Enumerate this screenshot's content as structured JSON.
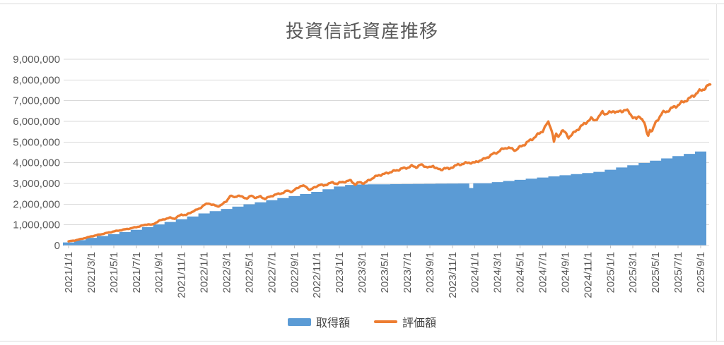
{
  "page": {
    "title": "投資信託資産推移"
  },
  "colors": {
    "acquisition_blue": "#5b9bd5",
    "valuation_orange": "#ed7d31",
    "gridline": "#d9d9d9",
    "axis_line": "#bfbfbf",
    "axis_text": "#595959",
    "title_text": "#595959",
    "legend_text": "#404040",
    "background": "#ffffff"
  },
  "chart_data": {
    "type": "combo-area-line",
    "title": "投資信託資産推移",
    "xlabel": "",
    "ylabel": "",
    "grid": true,
    "legend_position": "bottom",
    "y_axis": {
      "min": 0,
      "max": 9000000,
      "tick_interval": 1000000,
      "ticks": [
        {
          "value": 0,
          "label": "0"
        },
        {
          "value": 1000000,
          "label": "1,000,000"
        },
        {
          "value": 2000000,
          "label": "2,000,000"
        },
        {
          "value": 3000000,
          "label": "3,000,000"
        },
        {
          "value": 4000000,
          "label": "4,000,000"
        },
        {
          "value": 5000000,
          "label": "5,000,000"
        },
        {
          "value": 6000000,
          "label": "6,000,000"
        },
        {
          "value": 7000000,
          "label": "7,000,000"
        },
        {
          "value": 8000000,
          "label": "8,000,000"
        },
        {
          "value": 9000000,
          "label": "9,000,000"
        }
      ]
    },
    "x_axis": {
      "unit": "months_since_2021_01",
      "months_per_tick": 2,
      "tick_labels": [
        "2021/1/1",
        "2021/3/1",
        "2021/5/1",
        "2021/7/1",
        "2021/9/1",
        "2021/11/1",
        "2022/1/1",
        "2022/3/1",
        "2022/5/1",
        "2022/7/1",
        "2022/9/1",
        "2022/11/1",
        "2023/1/1",
        "2023/3/1",
        "2023/5/1",
        "2023/7/1",
        "2023/9/1",
        "2023/11/1",
        "2024/1/1",
        "2024/3/1",
        "2024/5/1",
        "2024/7/1",
        "2024/9/1",
        "2024/11/1",
        "2025/1/1",
        "2025/3/1",
        "2025/5/1",
        "2025/7/1",
        "2025/9/1"
      ]
    },
    "series": [
      {
        "name": "取得額",
        "type": "step-area",
        "color": "#5b9bd5",
        "step_points": [
          [
            0,
            150000
          ],
          [
            1,
            260000
          ],
          [
            2,
            370000
          ],
          [
            3,
            460000
          ],
          [
            4,
            550000
          ],
          [
            5,
            650000
          ],
          [
            6,
            760000
          ],
          [
            7,
            890000
          ],
          [
            8,
            1020000
          ],
          [
            9,
            1140000
          ],
          [
            10,
            1270000
          ],
          [
            11,
            1400000
          ],
          [
            12,
            1550000
          ],
          [
            13,
            1660000
          ],
          [
            14,
            1770000
          ],
          [
            15,
            1880000
          ],
          [
            16,
            1990000
          ],
          [
            17,
            2090000
          ],
          [
            18,
            2190000
          ],
          [
            19,
            2290000
          ],
          [
            20,
            2390000
          ],
          [
            21,
            2490000
          ],
          [
            22,
            2590000
          ],
          [
            23,
            2720000
          ],
          [
            24,
            2850000
          ],
          [
            25,
            2930000
          ],
          [
            26,
            2950000
          ],
          [
            27,
            2955000
          ],
          [
            28,
            2960000
          ],
          [
            29,
            2965000
          ],
          [
            30,
            2970000
          ],
          [
            31,
            2975000
          ],
          [
            32,
            2980000
          ],
          [
            33,
            2985000
          ],
          [
            34,
            2990000
          ],
          [
            35,
            2995000
          ],
          [
            36,
            2780000
          ],
          [
            36.35,
            3010000
          ],
          [
            37,
            3010000
          ],
          [
            38,
            3065000
          ],
          [
            39,
            3120000
          ],
          [
            40,
            3175000
          ],
          [
            41,
            3230000
          ],
          [
            42,
            3285000
          ],
          [
            43,
            3340000
          ],
          [
            44,
            3395000
          ],
          [
            45,
            3450000
          ],
          [
            46,
            3505000
          ],
          [
            47,
            3560000
          ],
          [
            48,
            3660000
          ],
          [
            49,
            3770000
          ],
          [
            50,
            3880000
          ],
          [
            51,
            3990000
          ],
          [
            52,
            4100000
          ],
          [
            53,
            4210000
          ],
          [
            54,
            4320000
          ],
          [
            55,
            4430000
          ],
          [
            56,
            4540000
          ]
        ]
      },
      {
        "name": "評価額",
        "type": "line",
        "color": "#ed7d31",
        "points": [
          [
            0,
            200000
          ],
          [
            0.5,
            240000
          ],
          [
            1,
            300000
          ],
          [
            1.5,
            370000
          ],
          [
            2,
            440000
          ],
          [
            2.5,
            500000
          ],
          [
            3,
            560000
          ],
          [
            3.5,
            620000
          ],
          [
            4,
            680000
          ],
          [
            4.5,
            730000
          ],
          [
            5,
            780000
          ],
          [
            5.5,
            830000
          ],
          [
            6,
            890000
          ],
          [
            6.5,
            960000
          ],
          [
            7,
            1030000
          ],
          [
            7.4,
            1000000
          ],
          [
            8,
            1190000
          ],
          [
            8.5,
            1280000
          ],
          [
            9,
            1340000
          ],
          [
            9.4,
            1300000
          ],
          [
            10,
            1500000
          ],
          [
            10.4,
            1470000
          ],
          [
            11,
            1650000
          ],
          [
            11.5,
            1760000
          ],
          [
            12,
            1950000
          ],
          [
            12.4,
            2040000
          ],
          [
            12.8,
            1960000
          ],
          [
            13.2,
            1890000
          ],
          [
            13.6,
            1980000
          ],
          [
            14,
            2150000
          ],
          [
            14.3,
            2400000
          ],
          [
            14.7,
            2330000
          ],
          [
            15,
            2420000
          ],
          [
            15.4,
            2340000
          ],
          [
            15.8,
            2280000
          ],
          [
            16.2,
            2400000
          ],
          [
            16.6,
            2310000
          ],
          [
            17,
            2360000
          ],
          [
            17.4,
            2260000
          ],
          [
            17.8,
            2350000
          ],
          [
            18.2,
            2440000
          ],
          [
            18.6,
            2490000
          ],
          [
            19,
            2550000
          ],
          [
            19.4,
            2650000
          ],
          [
            19.8,
            2600000
          ],
          [
            20.2,
            2750000
          ],
          [
            20.6,
            2900000
          ],
          [
            21,
            2840000
          ],
          [
            21.4,
            2690000
          ],
          [
            21.8,
            2800000
          ],
          [
            22.2,
            2940000
          ],
          [
            22.6,
            2890000
          ],
          [
            23,
            2990000
          ],
          [
            23.4,
            3040000
          ],
          [
            23.8,
            2990000
          ],
          [
            24.2,
            3060000
          ],
          [
            24.6,
            3100000
          ],
          [
            25,
            3140000
          ],
          [
            25.4,
            2950000
          ],
          [
            25.8,
            3060000
          ],
          [
            26.2,
            3010000
          ],
          [
            26.6,
            3150000
          ],
          [
            27,
            3280000
          ],
          [
            27.5,
            3400000
          ],
          [
            28,
            3460000
          ],
          [
            28.5,
            3550000
          ],
          [
            29,
            3620000
          ],
          [
            29.5,
            3710000
          ],
          [
            30,
            3760000
          ],
          [
            30.4,
            3840000
          ],
          [
            30.8,
            3790000
          ],
          [
            31.2,
            3900000
          ],
          [
            31.6,
            3830000
          ],
          [
            32,
            3760000
          ],
          [
            32.3,
            3850000
          ],
          [
            32.7,
            3700000
          ],
          [
            33,
            3640000
          ],
          [
            33.3,
            3760000
          ],
          [
            33.7,
            3690000
          ],
          [
            34,
            3800000
          ],
          [
            34.5,
            3900000
          ],
          [
            35,
            3960000
          ],
          [
            35.5,
            4010000
          ],
          [
            36,
            4000000
          ],
          [
            36.4,
            4110000
          ],
          [
            36.8,
            4170000
          ],
          [
            37.2,
            4300000
          ],
          [
            37.6,
            4420000
          ],
          [
            38,
            4510000
          ],
          [
            38.4,
            4640000
          ],
          [
            38.8,
            4740000
          ],
          [
            39.2,
            4680000
          ],
          [
            39.6,
            4610000
          ],
          [
            40,
            4760000
          ],
          [
            40.5,
            4930000
          ],
          [
            41,
            5120000
          ],
          [
            41.5,
            5320000
          ],
          [
            42,
            5550000
          ],
          [
            42.3,
            5800000
          ],
          [
            42.5,
            5950000
          ],
          [
            42.7,
            5750000
          ],
          [
            42.9,
            5350000
          ],
          [
            43,
            5020000
          ],
          [
            43.2,
            5360000
          ],
          [
            43.4,
            5260000
          ],
          [
            43.7,
            5560000
          ],
          [
            44,
            5450000
          ],
          [
            44.3,
            5230000
          ],
          [
            44.7,
            5400000
          ],
          [
            45,
            5570000
          ],
          [
            45.5,
            5790000
          ],
          [
            46,
            6020000
          ],
          [
            46.3,
            6120000
          ],
          [
            46.6,
            6060000
          ],
          [
            47,
            6210000
          ],
          [
            47.3,
            6460000
          ],
          [
            47.6,
            6360000
          ],
          [
            48,
            6420000
          ],
          [
            48.3,
            6520000
          ],
          [
            48.6,
            6420000
          ],
          [
            49,
            6500000
          ],
          [
            49.3,
            6560000
          ],
          [
            49.6,
            6460000
          ],
          [
            50,
            6220000
          ],
          [
            50.3,
            6100000
          ],
          [
            50.6,
            6260000
          ],
          [
            50.8,
            6120000
          ],
          [
            51,
            5930000
          ],
          [
            51.2,
            5480000
          ],
          [
            51.35,
            5320000
          ],
          [
            51.5,
            5620000
          ],
          [
            51.7,
            5520000
          ],
          [
            52,
            5920000
          ],
          [
            52.3,
            6180000
          ],
          [
            52.6,
            6400000
          ],
          [
            53,
            6490000
          ],
          [
            53.3,
            6580000
          ],
          [
            53.6,
            6680000
          ],
          [
            54,
            6790000
          ],
          [
            54.3,
            6890000
          ],
          [
            54.6,
            6990000
          ],
          [
            55,
            7090000
          ],
          [
            55.3,
            7230000
          ],
          [
            55.6,
            7340000
          ],
          [
            56,
            7490000
          ],
          [
            56.3,
            7580000
          ],
          [
            56.6,
            7690000
          ],
          [
            56.85,
            7780000
          ]
        ]
      }
    ]
  }
}
